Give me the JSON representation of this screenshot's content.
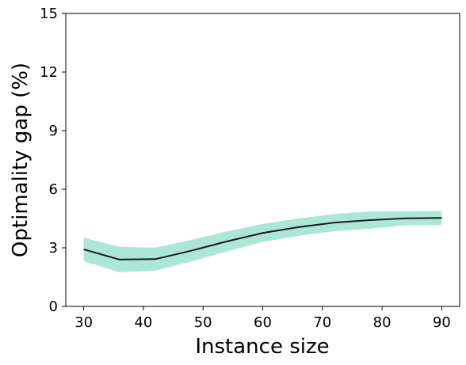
{
  "chart_data": {
    "type": "line",
    "title": "",
    "xlabel": "Instance size",
    "ylabel": "Optimality gap (%)",
    "xlim": [
      27,
      93
    ],
    "ylim": [
      0,
      15
    ],
    "xticks": [
      30,
      40,
      50,
      60,
      70,
      80,
      90
    ],
    "yticks": [
      0,
      3,
      6,
      9,
      12,
      15
    ],
    "grid": false,
    "legend": "none",
    "series": [
      {
        "x": [
          30,
          36,
          42,
          48,
          54,
          60,
          66,
          72,
          78,
          84,
          90
        ],
        "y": [
          2.92,
          2.4,
          2.42,
          2.85,
          3.33,
          3.76,
          4.06,
          4.29,
          4.42,
          4.51,
          4.53
        ],
        "lower": [
          2.32,
          1.75,
          1.83,
          2.3,
          2.82,
          3.3,
          3.62,
          3.85,
          3.98,
          4.16,
          4.18
        ],
        "upper": [
          3.52,
          3.05,
          3.01,
          3.4,
          3.84,
          4.22,
          4.5,
          4.73,
          4.86,
          4.87,
          4.88
        ],
        "line_color": "#1a1a1a",
        "band_color": "#ace6d6"
      }
    ]
  }
}
